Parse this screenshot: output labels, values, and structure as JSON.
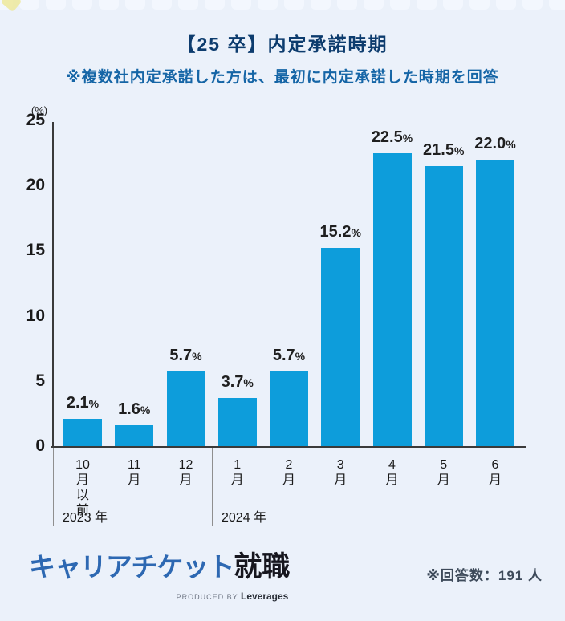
{
  "header": {
    "title": "【25 卒】内定承諾時期",
    "subtitle": "※複数社内定承諾した方は、最初に内定承諾した時期を回答"
  },
  "chart_data": {
    "type": "bar",
    "title": "【25 卒】内定承諾時期",
    "unit_label": "(%)",
    "ylabel": "(%)",
    "xlabel": "",
    "ylim": [
      0,
      25
    ],
    "yticks": [
      0,
      5,
      10,
      15,
      20,
      25
    ],
    "grid": false,
    "bar_color": "#0D9DDB",
    "categories": [
      "10月以前",
      "11月",
      "12月",
      "1月",
      "2月",
      "3月",
      "4月",
      "5月",
      "6月"
    ],
    "category_lines": [
      [
        "10",
        "月",
        "以",
        "前"
      ],
      [
        "11",
        "月"
      ],
      [
        "12",
        "月"
      ],
      [
        "1",
        "月"
      ],
      [
        "2",
        "月"
      ],
      [
        "3",
        "月"
      ],
      [
        "4",
        "月"
      ],
      [
        "5",
        "月"
      ],
      [
        "6",
        "月"
      ]
    ],
    "values": [
      2.1,
      1.6,
      5.7,
      3.7,
      5.7,
      15.2,
      22.5,
      21.5,
      22.0
    ],
    "value_labels": [
      "2.1",
      "1.6",
      "5.7",
      "3.7",
      "5.7",
      "15.2",
      "22.5",
      "21.5",
      "22.0"
    ],
    "percent_suffix": "%",
    "year_groups": [
      {
        "label": "2023 年",
        "start": 0,
        "end": 2
      },
      {
        "label": "2024 年",
        "start": 3,
        "end": 8
      }
    ]
  },
  "footer": {
    "respondents": "※回答数：191 人",
    "logo": {
      "part1": "キャリアチケット",
      "part2": "就職",
      "produced_by": "PRODUCED BY ",
      "company": "Leverages"
    }
  },
  "colors": {
    "background": "#EBF1FA",
    "bar": "#0D9DDB",
    "title": "#0D3C6E",
    "subtitle": "#1565A6",
    "axis": "#3A3A3A",
    "logo_blue": "#2D68B2",
    "logo_black": "#16161E"
  }
}
